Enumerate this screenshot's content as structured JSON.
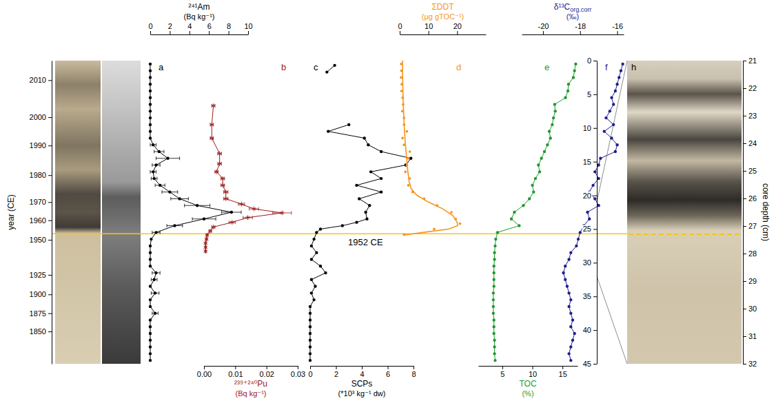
{
  "chart_data": {
    "type": "profile",
    "depth_axis": {
      "ylim": [
        0,
        45
      ],
      "yticks": [
        0,
        5,
        10,
        15,
        20,
        25,
        30,
        35,
        40,
        45
      ]
    },
    "year_axis": {
      "title": "year (CE)",
      "yticks": [
        {
          "value": 2.9,
          "label": "2010"
        },
        {
          "value": 8.4,
          "label": "2000"
        },
        {
          "value": 12.6,
          "label": "1990"
        },
        {
          "value": 17.0,
          "label": "1980"
        },
        {
          "value": 21.0,
          "label": "1970"
        },
        {
          "value": 23.7,
          "label": "1960"
        },
        {
          "value": 26.6,
          "label": "1950"
        },
        {
          "value": 31.8,
          "label": "1925"
        },
        {
          "value": 34.7,
          "label": "1900"
        },
        {
          "value": 37.5,
          "label": "1875"
        },
        {
          "value": 40.2,
          "label": "1850"
        }
      ]
    },
    "annotation": {
      "text": "1952 CE",
      "depth": 25.7
    },
    "photo": {
      "letter": "h",
      "ylim": [
        21,
        32
      ],
      "yticks": [
        21,
        22,
        23,
        24,
        25,
        26,
        27,
        28,
        29,
        30,
        31,
        32
      ],
      "axis_title": "core depth (cm)",
      "marker_depth": 27.3
    },
    "panels": [
      {
        "letter": "a",
        "title": "²⁴¹Am",
        "unit": "(Bq kg⁻¹)",
        "xlim": [
          0,
          10
        ],
        "xticks": [
          0,
          2,
          4,
          6,
          8,
          10
        ],
        "series": [
          {
            "type": "line",
            "marker": "circle",
            "color": "#000000",
            "depth": [
              0.5,
              1.5,
              2.5,
              3.5,
              4.5,
              5.5,
              6.5,
              7.5,
              8.5,
              9.5,
              10.5,
              11.5,
              12.5,
              13.5,
              14.5,
              15.5,
              16.5,
              17.5,
              18.5,
              19.5,
              20.5,
              21.5,
              22.5,
              23.5,
              24.5,
              25.5,
              26.5,
              27.5,
              28.5,
              29.5,
              30.5,
              31.5,
              32.5,
              33.5,
              34.5,
              35.5,
              36.5,
              37.5,
              38.5,
              39.5,
              40.5,
              41.5,
              42.5,
              43.5,
              44.5
            ],
            "values": [
              0,
              0,
              0,
              0,
              0,
              0,
              0,
              0,
              0,
              0,
              0,
              0,
              0.3,
              0.9,
              1.8,
              0.6,
              0.3,
              0.4,
              1.0,
              2.0,
              3.0,
              4.8,
              8.3,
              5.5,
              2.5,
              0.6,
              0.1,
              0,
              0,
              0,
              0,
              0.6,
              0.4,
              0,
              0.5,
              0,
              0,
              0.5,
              0,
              0,
              0,
              0,
              0,
              0,
              0
            ],
            "errors": [
              null,
              null,
              null,
              null,
              null,
              null,
              null,
              null,
              null,
              null,
              null,
              null,
              0.3,
              0.5,
              1.2,
              0.4,
              0.3,
              0.3,
              0.5,
              0.8,
              0.9,
              1.3,
              1.0,
              1.2,
              0.8,
              0.4,
              null,
              null,
              null,
              null,
              null,
              0.4,
              0.3,
              null,
              0.4,
              null,
              null,
              0.3,
              null,
              null,
              null,
              null,
              null,
              null,
              null
            ]
          }
        ]
      },
      {
        "letter": "b",
        "title": "²³⁹⁺²⁴⁰Pu",
        "unit": "(Bq kg⁻¹)",
        "xlim": [
          0,
          0.03
        ],
        "xticks": [
          {
            "value": 0,
            "label": "0.00"
          },
          0.01,
          0.02,
          0.03
        ],
        "series": [
          {
            "type": "line",
            "marker": "asterisk",
            "color": "#9b1b1b",
            "depth": [
              6.7,
              9.5,
              11.5,
              13.8,
              15.3,
              16.5,
              17.5,
              18.5,
              19.5,
              20.5,
              21.3,
              22.0,
              22.6,
              23.3,
              24.0,
              24.7,
              25.3,
              25.9,
              26.5,
              27.1,
              27.7,
              28.3
            ],
            "values": [
              0.003,
              0.0025,
              0.0025,
              0.005,
              0.005,
              0.004,
              0.006,
              0.006,
              0.007,
              0.007,
              0.012,
              0.016,
              0.025,
              0.014,
              0.009,
              0.003,
              0.002,
              0.001,
              0.0008,
              0.0005,
              0.0005,
              0.0005
            ],
            "errors": [
              0.0005,
              0.0005,
              0.0005,
              0.0006,
              0.0006,
              0.0005,
              0.0006,
              0.0006,
              0.0007,
              0.0007,
              0.001,
              0.0015,
              0.003,
              0.0015,
              0.001,
              0.0005,
              0.0004,
              0.0003,
              0.0003,
              0.0002,
              0.0002,
              0.0002
            ]
          }
        ]
      },
      {
        "letter": "c",
        "title": "SCPs",
        "unit": "(*10³ kg⁻¹ dw)",
        "xlim": [
          0,
          8
        ],
        "xticks": [
          0,
          2,
          4,
          6,
          8
        ],
        "series": [
          {
            "type": "line",
            "marker": "circle",
            "color": "#000000",
            "depth": [
              0.7,
              1.7,
              5.0,
              9.5,
              10.5,
              11.5,
              12.5,
              13.5,
              14.5,
              15.5,
              16.5,
              17.5,
              18.5,
              19.5,
              20.5,
              21.5,
              22.5,
              23.5,
              24.0,
              24.5,
              25.0,
              25.5,
              26.5,
              27.5,
              28.5,
              29.5,
              30.5,
              31.5,
              32.5,
              33.5,
              34.5,
              35.5,
              36.5,
              37.5,
              38.5,
              39.5,
              40.5,
              41.5,
              42.5,
              43.5,
              44.5
            ],
            "values": [
              1.9,
              1.3,
              null,
              3.0,
              1.4,
              4.2,
              4.5,
              5.5,
              7.8,
              7.4,
              4.7,
              5.5,
              3.6,
              5.5,
              3.8,
              4.6,
              4.3,
              4.4,
              3.6,
              2.5,
              0.8,
              0.5,
              0.3,
              0.1,
              0.5,
              0.1,
              0.8,
              1.2,
              0.1,
              0.4,
              0.1,
              0.3,
              0,
              0,
              0,
              0,
              0,
              0,
              0,
              0,
              0
            ]
          }
        ]
      },
      {
        "letter": "d",
        "title": "ΣDDT",
        "unit": "(µg gTOC⁻¹)",
        "xlim": [
          0,
          30
        ],
        "xticks": [
          0,
          10,
          20
        ],
        "series": [
          {
            "type": "scatter",
            "marker": "circle",
            "color": "#f7941d",
            "depth": [
              0.5,
              1.5,
              2.5,
              3.5,
              4.5,
              5.5,
              6.5,
              7.5,
              8.5,
              9.5,
              10.5,
              11.5,
              12.5,
              13.5,
              14.5,
              15.5,
              16.5,
              17.5,
              18.5,
              19.5,
              20.5,
              21.5,
              22.5,
              23.5,
              24.2,
              25.0,
              25.8
            ],
            "values": [
              0.5,
              0.6,
              0.5,
              0.7,
              0.6,
              1.0,
              1.2,
              0.9,
              1.5,
              1.5,
              2.5,
              1.0,
              1.5,
              3.5,
              3.0,
              2.5,
              2.0,
              3.5,
              3.0,
              4.5,
              8.5,
              13.0,
              18.0,
              19.5,
              21.0,
              12.0,
              1.5
            ]
          },
          {
            "type": "line",
            "color": "#f7941d",
            "depth": [
              0,
              2,
              4,
              6,
              8,
              10,
              12,
              14,
              16,
              18,
              19,
              20,
              21,
              22,
              23,
              24,
              24.5,
              25,
              25.5,
              25.9
            ],
            "values": [
              1.0,
              1.0,
              1.1,
              1.2,
              1.4,
              1.6,
              1.9,
              2.3,
              2.7,
              3.3,
              4.0,
              6.0,
              10.0,
              15.0,
              18.5,
              20.0,
              20.2,
              17.0,
              8.0,
              1.5
            ]
          }
        ]
      },
      {
        "letter": "e",
        "title": "TOC",
        "unit": "(%)",
        "xlim": [
          1,
          17.5
        ],
        "xticks": [
          5,
          10,
          15
        ],
        "series": [
          {
            "type": "line",
            "marker": "circle",
            "color": "#1f9a2e",
            "depth": [
              0.5,
              1.5,
              2.5,
              3.5,
              4.5,
              5.5,
              6.5,
              7.5,
              8.5,
              9.5,
              10.5,
              11.5,
              12.5,
              13.5,
              14.5,
              15.5,
              16.5,
              17.5,
              18.5,
              19.5,
              20.5,
              21.5,
              22.5,
              23.5,
              24.5,
              25.5,
              26.5,
              27.5,
              28.5,
              29.5,
              30.5,
              31.5,
              32.5,
              33.5,
              34.5,
              35.5,
              36.5,
              37.5,
              38.5,
              39.5,
              40.5,
              41.5,
              42.5,
              43.5,
              44.5
            ],
            "values": [
              17.2,
              17.0,
              16.8,
              16.0,
              15.9,
              15.5,
              13.7,
              13.8,
              13.5,
              13.3,
              12.8,
              13.0,
              12.5,
              12.0,
              11.5,
              11.0,
              11.2,
              10.5,
              10.0,
              10.2,
              9.5,
              8.5,
              7.0,
              6.5,
              7.8,
              4.2,
              3.9,
              3.8,
              3.7,
              3.7,
              3.6,
              3.6,
              3.6,
              3.6,
              3.5,
              3.5,
              3.5,
              3.5,
              3.6,
              3.6,
              3.6,
              3.7,
              3.7,
              3.7,
              3.8
            ]
          }
        ]
      },
      {
        "letter": "f",
        "title": "δ¹³C",
        "title_subscript": "org.corr",
        "unit": "(‰)",
        "xlim": [
          -21.15,
          -15.65
        ],
        "xticks": [
          -20,
          -18,
          -16
        ],
        "series": [
          {
            "type": "line",
            "marker": "circle",
            "color": "#1e1e8f",
            "depth": [
              0.5,
              1.5,
              2.5,
              3.5,
              4.5,
              5.5,
              6.5,
              7.5,
              8.5,
              9.5,
              10.5,
              11.5,
              12.5,
              13.5,
              14.5,
              15.5,
              16.5,
              17.5,
              18.5,
              19.5,
              20.5,
              21.5,
              22.5,
              23.5,
              24.5,
              25.5,
              26.5,
              27.5,
              28.5,
              29.5,
              30.5,
              31.5,
              32.5,
              33.5,
              34.5,
              35.5,
              36.5,
              37.5,
              38.5,
              39.5,
              40.5,
              41.5,
              42.5,
              43.5,
              44.5
            ],
            "values": [
              -15.7,
              -15.8,
              -15.9,
              -16.0,
              -16.1,
              -16.3,
              -16.2,
              -16.4,
              -16.6,
              -16.2,
              -16.7,
              -16.3,
              -16.0,
              -16.1,
              -16.9,
              -17.0,
              -17.2,
              -17.0,
              -17.3,
              -17.5,
              -17.2,
              -17.0,
              -17.6,
              -17.5,
              -17.8,
              -18.0,
              -18.1,
              -18.2,
              -18.5,
              -18.6,
              -18.8,
              -18.9,
              -18.8,
              -18.7,
              -18.6,
              -18.5,
              -18.6,
              -18.5,
              -18.4,
              -18.5,
              -18.3,
              -18.4,
              -18.5,
              -18.6,
              -18.5
            ]
          }
        ]
      }
    ]
  }
}
